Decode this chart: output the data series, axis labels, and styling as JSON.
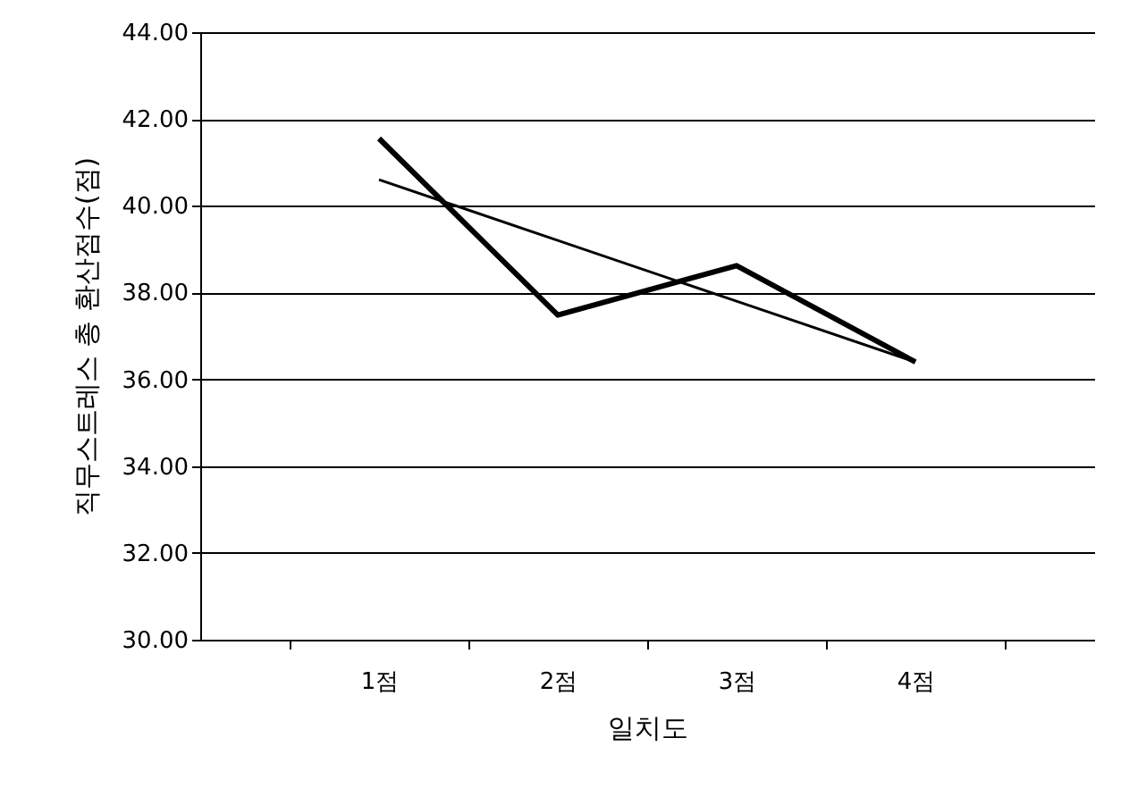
{
  "chart_data": {
    "type": "line",
    "xlabel": "일치도",
    "ylabel": "직무스트레스 총 환산점수(점)",
    "categories": [
      "1점",
      "2점",
      "3점",
      "4점"
    ],
    "series": [
      {
        "color": "#000000",
        "values": [
          41.55,
          37.48,
          38.62,
          36.4
        ]
      },
      {
        "color": "#000000",
        "values": [
          40.6,
          39.2,
          37.8,
          36.4
        ]
      }
    ],
    "ylim": [
      30,
      44
    ],
    "yticks": [
      {
        "value": 30,
        "label": "30.00"
      },
      {
        "value": 32,
        "label": "32.00"
      },
      {
        "value": 34,
        "label": "34.00"
      },
      {
        "value": 36,
        "label": "36.00"
      },
      {
        "value": 38,
        "label": "38.00"
      },
      {
        "value": 40,
        "label": "40.00"
      },
      {
        "value": 42,
        "label": "42.00"
      },
      {
        "value": 44,
        "label": "44.00"
      }
    ],
    "grid": "y",
    "marker": "none",
    "line_style": "solid"
  }
}
